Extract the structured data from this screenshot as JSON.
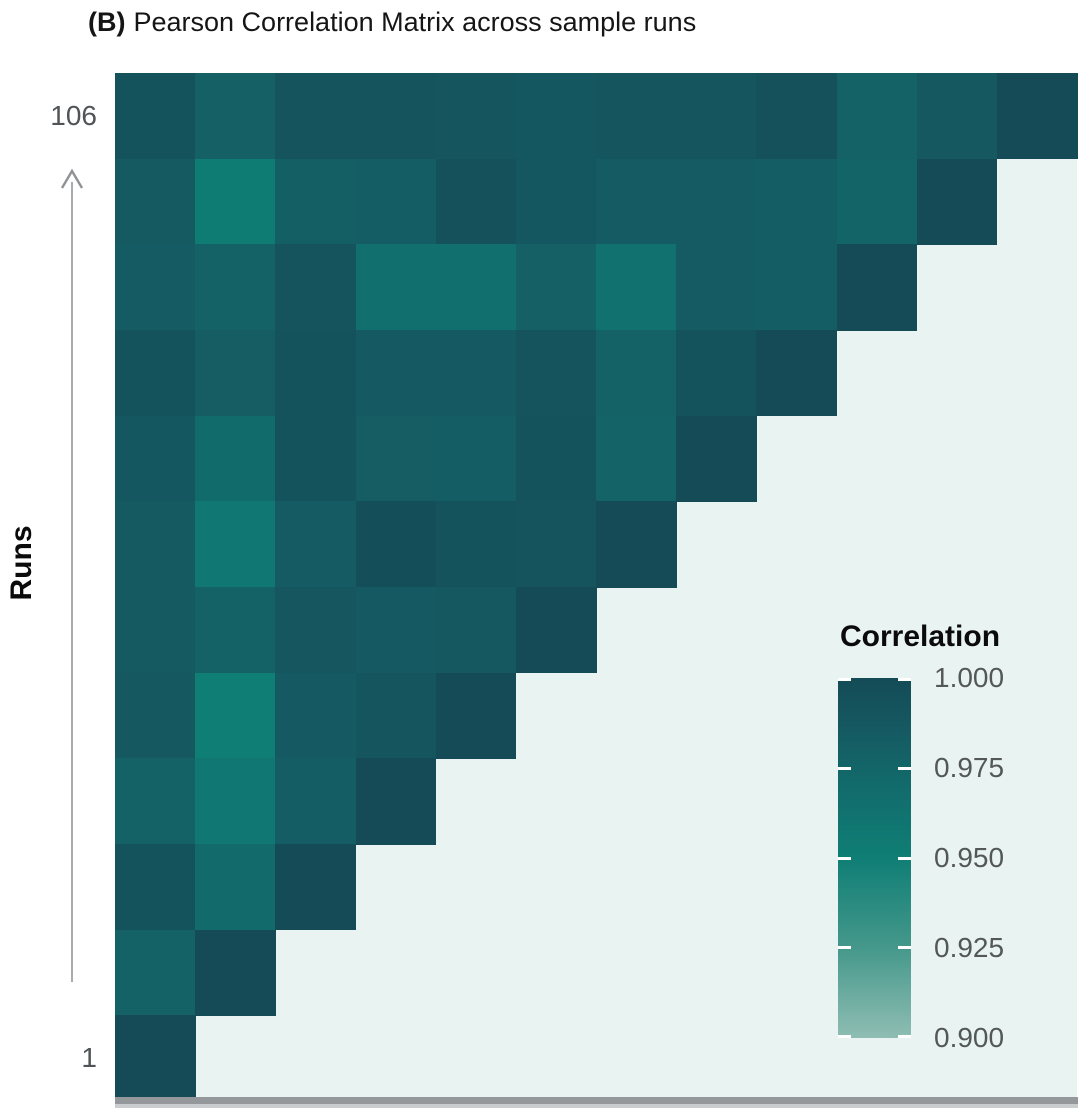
{
  "title": {
    "prefix": "(B)",
    "text": "Pearson Correlation Matrix across sample runs"
  },
  "y_axis": {
    "label": "Runs",
    "tick_top": "106",
    "tick_bottom": "1"
  },
  "legend": {
    "title": "Correlation",
    "tick_labels": [
      "1.000",
      "0.975",
      "0.950",
      "0.925",
      "0.900"
    ]
  },
  "colors": {
    "panel_background": "#E9F4F2",
    "axis_bar": "#94989A",
    "axis_bar_shadow": "#C9CDCD",
    "tick_text": "#515456",
    "legend_label_text": "#54575A",
    "arrow": "#909295",
    "title_text": "#151515"
  },
  "chart_data": {
    "type": "heatmap",
    "title": "(B) Pearson Correlation Matrix across sample runs",
    "ylabel": "Runs",
    "y_range": [
      1,
      106
    ],
    "n_rows": 12,
    "n_cols": 12,
    "shape": "upper-left triangle; diagonal (correlation = 1.000) runs from top-right to bottom-left",
    "legend_title": "Correlation",
    "legend_ticks": [
      1.0,
      0.975,
      0.95,
      0.925,
      0.9
    ],
    "color_scale": {
      "domain": [
        0.9,
        1.0
      ],
      "stops": [
        [
          1.0,
          "#144B56"
        ],
        [
          0.985,
          "#155A62"
        ],
        [
          0.97,
          "#126B6B"
        ],
        [
          0.95,
          "#0F7E75"
        ],
        [
          0.925,
          "#45988B"
        ],
        [
          0.9,
          "#8FBDB3"
        ]
      ]
    },
    "rows_top_to_bottom": [
      [
        0.993,
        0.98,
        0.991,
        0.991,
        0.99,
        0.988,
        0.99,
        0.99,
        0.994,
        0.979,
        0.987,
        1.0
      ],
      [
        0.986,
        0.952,
        0.981,
        0.982,
        0.994,
        0.988,
        0.984,
        0.984,
        0.982,
        0.976,
        1.0
      ],
      [
        0.984,
        0.978,
        0.991,
        0.965,
        0.966,
        0.98,
        0.964,
        0.984,
        0.982,
        1.0
      ],
      [
        0.992,
        0.983,
        0.993,
        0.985,
        0.985,
        0.991,
        0.978,
        0.992,
        1.0
      ],
      [
        0.988,
        0.97,
        0.993,
        0.983,
        0.982,
        0.992,
        0.977,
        1.0
      ],
      [
        0.986,
        0.957,
        0.984,
        0.996,
        0.992,
        0.991,
        1.0
      ],
      [
        0.986,
        0.978,
        0.989,
        0.985,
        0.987,
        1.0
      ],
      [
        0.987,
        0.95,
        0.985,
        0.99,
        1.0
      ],
      [
        0.978,
        0.957,
        0.982,
        1.0
      ],
      [
        0.992,
        0.971,
        1.0
      ],
      [
        0.978,
        1.0
      ],
      [
        1.0
      ]
    ]
  }
}
